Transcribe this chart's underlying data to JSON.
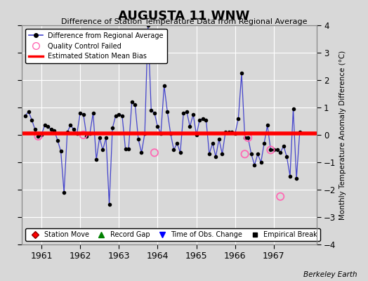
{
  "title": "AUGUSTA 11 WNW",
  "subtitle": "Difference of Station Temperature Data from Regional Average",
  "ylabel_right": "Monthly Temperature Anomaly Difference (°C)",
  "watermark": "Berkeley Earth",
  "xlim": [
    1960.5,
    1968.1
  ],
  "ylim": [
    -4,
    4
  ],
  "yticks": [
    -4,
    -3,
    -2,
    -1,
    0,
    1,
    2,
    3,
    4
  ],
  "xticks": [
    1961,
    1962,
    1963,
    1964,
    1965,
    1966,
    1967
  ],
  "bias_intercept": 0.05,
  "background_color": "#d8d8d8",
  "plot_bg_color": "#d8d8d8",
  "line_color": "#4444cc",
  "bias_color": "red",
  "point_color": "black",
  "qc_color": "#ff69b4",
  "data_x": [
    1960.583,
    1960.667,
    1960.75,
    1960.833,
    1960.917,
    1961.0,
    1961.083,
    1961.167,
    1961.25,
    1961.333,
    1961.417,
    1961.5,
    1961.583,
    1961.667,
    1961.75,
    1961.833,
    1961.917,
    1962.0,
    1962.083,
    1962.167,
    1962.25,
    1962.333,
    1962.417,
    1962.5,
    1962.583,
    1962.667,
    1962.75,
    1962.833,
    1962.917,
    1963.0,
    1963.083,
    1963.167,
    1963.25,
    1963.333,
    1963.417,
    1963.5,
    1963.583,
    1963.667,
    1963.75,
    1963.833,
    1963.917,
    1964.0,
    1964.083,
    1964.167,
    1964.25,
    1964.333,
    1964.417,
    1964.5,
    1964.583,
    1964.667,
    1964.75,
    1964.833,
    1964.917,
    1965.0,
    1965.083,
    1965.167,
    1965.25,
    1965.333,
    1965.417,
    1965.5,
    1965.583,
    1965.667,
    1965.75,
    1965.833,
    1965.917,
    1966.0,
    1966.083,
    1966.167,
    1966.25,
    1966.333,
    1966.417,
    1966.5,
    1966.583,
    1966.667,
    1966.75,
    1966.833,
    1966.917,
    1967.0,
    1967.083,
    1967.167,
    1967.25,
    1967.333,
    1967.417,
    1967.5,
    1967.583,
    1967.667
  ],
  "data_y": [
    0.7,
    0.85,
    0.55,
    0.2,
    -0.05,
    0.0,
    0.35,
    0.3,
    0.2,
    0.15,
    -0.2,
    -0.6,
    -2.1,
    0.1,
    0.35,
    0.2,
    0.05,
    0.8,
    0.75,
    -0.05,
    0.05,
    0.8,
    -0.9,
    -0.1,
    -0.55,
    -0.1,
    -2.55,
    0.25,
    0.7,
    0.75,
    0.7,
    -0.5,
    -0.5,
    1.2,
    1.1,
    -0.15,
    -0.65,
    0.05,
    4.0,
    0.9,
    0.8,
    0.3,
    0.05,
    1.8,
    0.85,
    0.05,
    -0.55,
    -0.3,
    -0.65,
    0.8,
    0.85,
    0.3,
    0.75,
    0.0,
    0.55,
    0.6,
    0.55,
    -0.7,
    -0.3,
    -0.8,
    -0.15,
    -0.7,
    0.1,
    0.1,
    0.1,
    0.05,
    0.6,
    2.25,
    -0.1,
    -0.1,
    -0.7,
    -1.1,
    -0.7,
    -1.0,
    -0.3,
    0.35,
    -0.55,
    -0.55,
    -0.55,
    -0.65,
    -0.4,
    -0.8,
    -1.5,
    0.95,
    -1.6,
    0.1
  ],
  "qc_failed_x": [
    1960.917,
    1962.083,
    1963.917,
    1966.25,
    1966.333,
    1966.917,
    1967.167
  ],
  "qc_failed_y": [
    -0.05,
    0.0,
    -0.65,
    -0.7,
    -0.1,
    -0.55,
    -2.25
  ]
}
